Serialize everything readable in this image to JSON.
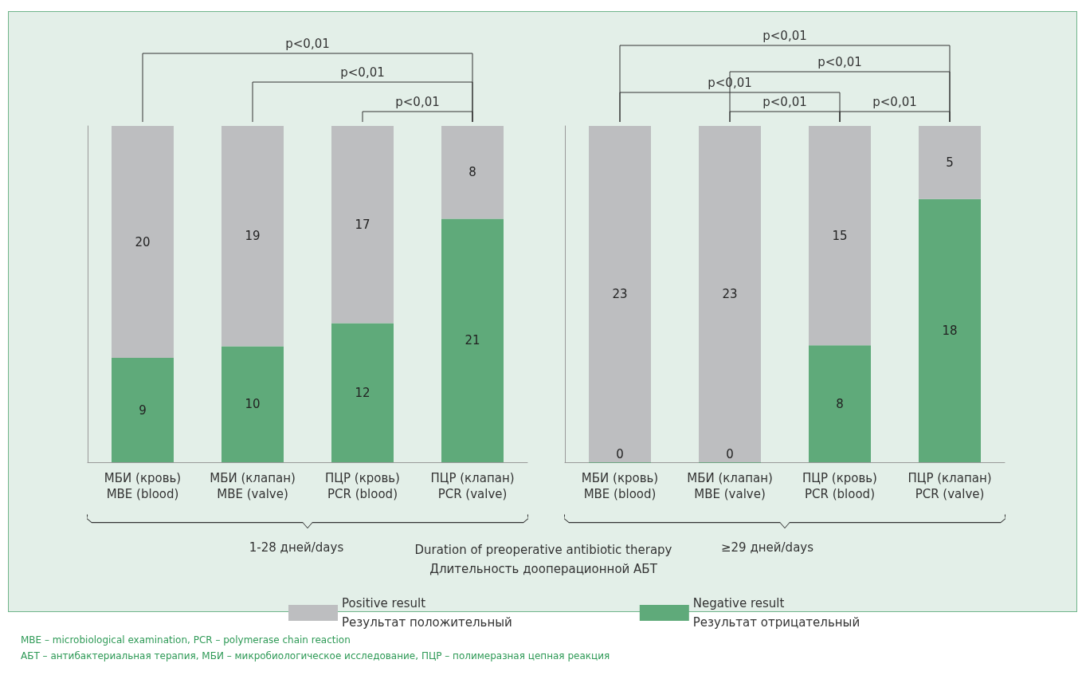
{
  "chart_data": [
    {
      "type": "bar",
      "stacked": true,
      "xlabel": "1-28 дней/days",
      "categories": [
        "МБИ (кровь)\nMBE (blood)",
        "МБИ (клапан)\nMBE (valve)",
        "ПЦР (кровь)\nPCR (blood)",
        "ПЦР (клапан)\nPCR (valve)"
      ],
      "series": [
        {
          "name": "Negative result\nРезультат отрицательный",
          "color": "#5faa7a",
          "values": [
            9,
            10,
            12,
            21
          ]
        },
        {
          "name": "Positive result\nРезультат положительный",
          "color": "#bdbec0",
          "values": [
            20,
            19,
            17,
            8
          ]
        }
      ],
      "data_labels": true,
      "tick_labels": "x",
      "grid": false,
      "legend": "bottom",
      "annotations": [
        "p<0,01",
        "p<0,01",
        "p<0,01",
        "Duration of preoperative antibiotic therapy\nДлительность дооперационной АБТ",
        "MBE – microbiological examination, PCR – polymerase chain reaction",
        "АБТ – антибактериальная терапия, МБИ – микробиологическое исследование, ПЦР – полимеразная цепная реакция"
      ]
    },
    {
      "type": "bar",
      "stacked": true,
      "xlabel": "≥29 дней/days",
      "categories": [
        "МБИ (кровь)\nMBE (blood)",
        "МБИ (клапан)\nMBE (valve)",
        "ПЦР (кровь)\nPCR (blood)",
        "ПЦР (клапан)\nPCR (valve)"
      ],
      "series": [
        {
          "name": "Negative result\nРезультат отрицательный",
          "color": "#5faa7a",
          "values": [
            0,
            0,
            8,
            18
          ]
        },
        {
          "name": "Positive result\nРезультат положительный",
          "color": "#bdbec0",
          "values": [
            23,
            23,
            15,
            5
          ]
        }
      ],
      "data_labels": true,
      "tick_labels": "x",
      "grid": false,
      "annotations": [
        "p<0,01",
        "p<0,01",
        "p<0,01",
        "p<0,01",
        "p<0,01"
      ]
    }
  ]
}
